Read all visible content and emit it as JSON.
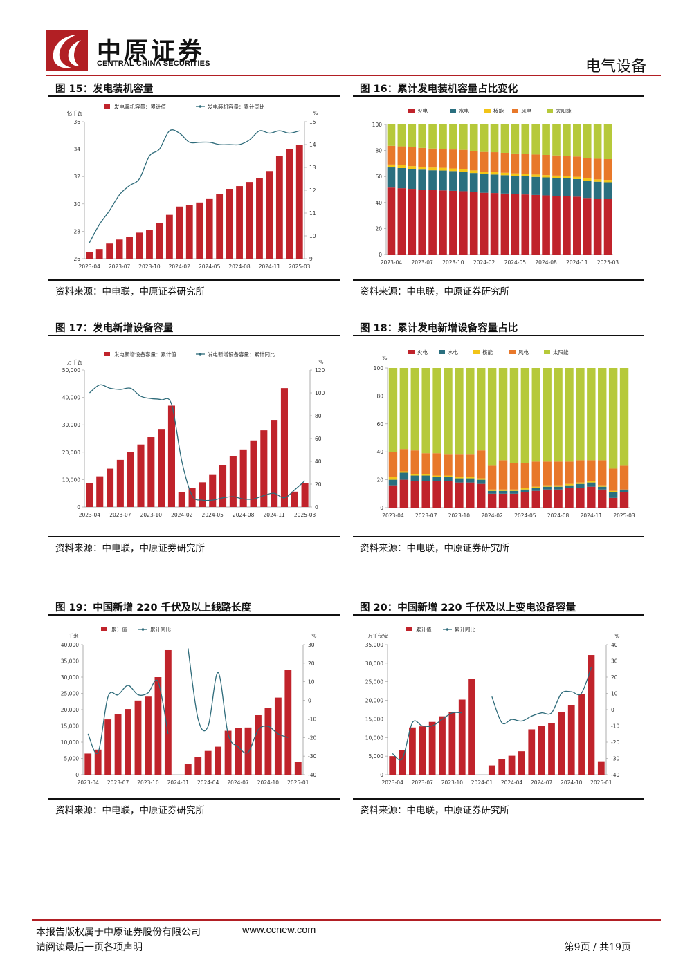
{
  "header": {
    "logo_cn": "中原证券",
    "logo_en": "CENTRAL CHINA SECURITIES",
    "section": "电气设备",
    "colors": {
      "brand_red": "#b21f24"
    }
  },
  "figures": [
    {
      "title": "图 15：发电装机容量",
      "source": "资料来源：中电联，中原证券研究所",
      "chart_data": {
        "type": "bar",
        "left_unit": "亿千瓦",
        "right_unit": "%",
        "categories": [
          "2023-04",
          "2023-05",
          "2023-06",
          "2023-07",
          "2023-08",
          "2023-09",
          "2023-10",
          "2023-11",
          "2023-12",
          "2024-02",
          "2024-03",
          "2024-04",
          "2024-05",
          "2024-06",
          "2024-07",
          "2024-08",
          "2024-09",
          "2024-10",
          "2024-11",
          "2024-12",
          "2025-01",
          "2025-03"
        ],
        "tick_labels": [
          "2023-04",
          "2023-07",
          "2023-10",
          "2024-02",
          "2024-05",
          "2024-08",
          "2024-11",
          "2025-03"
        ],
        "series": [
          {
            "name": "发电装机容量：累计值",
            "color": "#c0232b",
            "axis": "left",
            "values": [
              26.5,
              26.7,
              27.1,
              27.4,
              27.6,
              27.9,
              28.1,
              28.6,
              29.2,
              29.8,
              29.9,
              30.1,
              30.4,
              30.7,
              31.1,
              31.3,
              31.6,
              31.9,
              32.4,
              33.5,
              34.0,
              34.3
            ]
          },
          {
            "name": "发电装机容量：累计同比",
            "color": "#2e6b7a",
            "axis": "right",
            "values": [
              9.7,
              10.5,
              11.1,
              11.8,
              12.2,
              12.5,
              13.5,
              13.8,
              14.6,
              14.5,
              14.1,
              14.1,
              14.1,
              14.0,
              14.0,
              14.0,
              14.2,
              14.6,
              14.5,
              14.6,
              14.5,
              14.6
            ]
          }
        ],
        "ylim_left": [
          26,
          36
        ],
        "yticks_left": [
          26,
          28,
          30,
          32,
          34,
          36
        ],
        "ylim_right": [
          9,
          15
        ],
        "yticks_right": [
          9,
          10,
          11,
          12,
          13,
          14,
          15
        ]
      }
    },
    {
      "title": "图 16：累计发电装机容量占比变化",
      "source": "资料来源：中电联，中原证券研究所",
      "chart_data": {
        "type": "stacked_bar",
        "categories": [
          "2023-04",
          "2023-05",
          "2023-06",
          "2023-07",
          "2023-08",
          "2023-09",
          "2023-10",
          "2023-11",
          "2023-12",
          "2024-02",
          "2024-03",
          "2024-04",
          "2024-05",
          "2024-06",
          "2024-07",
          "2024-08",
          "2024-09",
          "2024-10",
          "2024-11",
          "2024-12",
          "2025-01",
          "2025-03"
        ],
        "tick_labels": [
          "2023-04",
          "2023-07",
          "2023-10",
          "2024-02",
          "2024-05",
          "2024-08",
          "2024-11",
          "2025-03"
        ],
        "ylim": [
          0,
          100
        ],
        "yticks": [
          0,
          20,
          40,
          60,
          80,
          100
        ],
        "series": [
          {
            "name": "火电",
            "color": "#c0232b",
            "values": [
              51.5,
              51.0,
              50.5,
              50.0,
              49.5,
              49.3,
              49.0,
              48.7,
              48.0,
              47.5,
              47.3,
              46.9,
              46.5,
              46.2,
              45.8,
              45.5,
              45.2,
              45.0,
              44.5,
              43.5,
              43.0,
              42.7
            ]
          },
          {
            "name": "水电",
            "color": "#2a6f7f",
            "values": [
              15.5,
              15.5,
              15.4,
              15.3,
              15.3,
              15.3,
              15.2,
              15.0,
              14.7,
              14.3,
              14.2,
              14.1,
              14.0,
              14.0,
              13.9,
              13.8,
              13.7,
              13.6,
              13.5,
              13.2,
              13.0,
              12.9
            ]
          },
          {
            "name": "核能",
            "color": "#f2c418",
            "values": [
              2.2,
              2.2,
              2.1,
              2.1,
              2.1,
              2.1,
              2.0,
              2.0,
              2.0,
              1.9,
              1.9,
              1.9,
              1.9,
              1.9,
              1.8,
              1.8,
              1.8,
              1.8,
              1.8,
              1.8,
              1.8,
              1.8
            ]
          },
          {
            "name": "风电",
            "color": "#e8782a",
            "values": [
              14.4,
              14.5,
              14.6,
              14.6,
              14.6,
              14.6,
              14.6,
              14.8,
              15.1,
              15.2,
              15.3,
              15.3,
              15.3,
              15.3,
              15.4,
              15.5,
              15.5,
              15.6,
              15.6,
              15.8,
              15.9,
              16.0
            ]
          },
          {
            "name": "太阳能",
            "color": "#b6c93a",
            "values": [
              16.4,
              16.8,
              17.4,
              18.0,
              18.5,
              18.7,
              19.2,
              19.5,
              20.2,
              21.1,
              21.3,
              21.8,
              22.3,
              22.6,
              23.1,
              23.4,
              23.8,
              24.0,
              24.6,
              25.7,
              26.3,
              26.6
            ]
          }
        ]
      }
    },
    {
      "title": "图 17：发电新增设备容量",
      "source": "资料来源：中电联，中原证券研究所",
      "chart_data": {
        "type": "bar",
        "left_unit": "万千瓦",
        "right_unit": "%",
        "categories": [
          "2023-04",
          "2023-05",
          "2023-06",
          "2023-07",
          "2023-08",
          "2023-09",
          "2023-10",
          "2023-11",
          "2023-12",
          "2024-02",
          "2024-03",
          "2024-04",
          "2024-05",
          "2024-06",
          "2024-07",
          "2024-08",
          "2024-09",
          "2024-10",
          "2024-11",
          "2024-12",
          "2025-01",
          "2025-03"
        ],
        "tick_labels": [
          "2023-04",
          "2023-07",
          "2023-10",
          "2024-02",
          "2024-05",
          "2024-08",
          "2024-11",
          "2025-03"
        ],
        "series": [
          {
            "name": "发电新增设备容量：累计值",
            "color": "#c0232b",
            "axis": "left",
            "values": [
              8600,
              11200,
              14000,
              17200,
              20000,
              22800,
              25500,
              28500,
              37000,
              5500,
              7000,
              9000,
              11700,
              15200,
              18600,
              21000,
              24300,
              28000,
              31800,
              43400,
              5600,
              8700
            ]
          },
          {
            "name": "发电新增设备容量：累计同比",
            "color": "#2e6b7a",
            "axis": "right",
            "values": [
              100,
              107,
              104,
              103,
              104,
              97,
              95,
              94,
              90,
              40,
              10,
              6,
              6,
              8,
              9,
              7,
              7,
              10,
              12,
              8,
              15,
              23
            ]
          }
        ],
        "ylim_left": [
          0,
          50000
        ],
        "yticks_left": [
          0,
          10000,
          20000,
          30000,
          40000,
          50000
        ],
        "yticks_left_labels": [
          "0",
          "10,000",
          "20,000",
          "30,000",
          "40,000",
          "50,000"
        ],
        "ylim_right": [
          0,
          120
        ],
        "yticks_right": [
          0,
          20,
          40,
          60,
          80,
          100,
          120
        ]
      }
    },
    {
      "title": "图 18：累计发电新增设备容量占比",
      "source": "资料来源：中电联，中原证券研究所",
      "chart_data": {
        "type": "stacked_bar",
        "y_unit": "%",
        "categories": [
          "2023-04",
          "2023-05",
          "2023-06",
          "2023-07",
          "2023-08",
          "2023-09",
          "2023-10",
          "2023-11",
          "2023-12",
          "2024-02",
          "2024-03",
          "2024-04",
          "2024-05",
          "2024-06",
          "2024-07",
          "2024-08",
          "2024-09",
          "2024-10",
          "2024-11",
          "2024-12",
          "2025-01",
          "2025-03"
        ],
        "tick_labels": [
          "2023-04",
          "2023-07",
          "2023-10",
          "2024-02",
          "2024-05",
          "2024-08",
          "2024-11",
          "2025-03"
        ],
        "ylim": [
          0,
          100
        ],
        "yticks": [
          0,
          20,
          40,
          60,
          80,
          100
        ],
        "series": [
          {
            "name": "火电",
            "color": "#c0232b",
            "values": [
              16,
              20,
              19,
              19,
              19,
              19,
              18,
              18,
              17,
              10,
              10,
              10,
              11,
              12,
              13,
              13,
              14,
              14,
              15,
              13,
              7,
              11
            ]
          },
          {
            "name": "水电",
            "color": "#2a6f7f",
            "values": [
              4,
              5,
              4,
              4,
              3,
              3,
              3,
              3,
              3,
              2,
              2,
              2,
              2,
              2,
              2,
              2,
              2,
              3,
              3,
              2,
              4,
              2
            ]
          },
          {
            "name": "核能",
            "color": "#f2c418",
            "values": [
              2,
              1,
              1,
              1,
              1,
              1,
              1,
              1,
              1,
              1,
              1,
              1,
              1,
              1,
              1,
              1,
              1,
              1,
              1,
              1,
              1,
              0
            ]
          },
          {
            "name": "风电",
            "color": "#e8782a",
            "values": [
              18,
              16,
              17,
              15,
              16,
              15,
              16,
              16,
              20,
              17,
              21,
              19,
              18,
              18,
              17,
              17,
              16,
              16,
              15,
              18,
              16,
              17
            ]
          },
          {
            "name": "太阳能",
            "color": "#b6c93a",
            "values": [
              60,
              58,
              59,
              61,
              61,
              62,
              62,
              62,
              59,
              70,
              66,
              68,
              68,
              67,
              67,
              67,
              67,
              66,
              66,
              66,
              72,
              70
            ]
          }
        ]
      }
    },
    {
      "title": "图 19：中国新增 220 千伏及以上线路长度",
      "source": "资料来源：中电联，中原证券研究所",
      "chart_data": {
        "type": "bar",
        "left_unit": "千米",
        "right_unit": "%",
        "categories": [
          "2023-04",
          "2023-05",
          "2023-06",
          "2023-07",
          "2023-08",
          "2023-09",
          "2023-10",
          "2023-11",
          "2023-12",
          "2024-01",
          "2024-02",
          "2024-03",
          "2024-04",
          "2024-05",
          "2024-06",
          "2024-07",
          "2024-08",
          "2024-09",
          "2024-10",
          "2024-11",
          "2024-12",
          "2025-01"
        ],
        "tick_labels": [
          "2023-04",
          "2023-07",
          "2023-10",
          "2024-01",
          "2024-04",
          "2024-07",
          "2024-10",
          "2025-01"
        ],
        "series": [
          {
            "name": "累计值",
            "color": "#c0232b",
            "axis": "left",
            "values": [
              6500,
              7700,
              17000,
              18600,
              20200,
              22800,
              24000,
              30000,
              38300,
              null,
              3400,
              5500,
              7300,
              8600,
              13500,
              14300,
              14500,
              18300,
              20600,
              23700,
              32200,
              3900
            ]
          },
          {
            "name": "累计同比",
            "color": "#2e6b7a",
            "axis": "right",
            "values": [
              -18,
              -28,
              2,
              3,
              8,
              3,
              4,
              10,
              -18,
              null,
              28,
              -10,
              -14,
              15,
              -18,
              -25,
              -28,
              -16,
              -14,
              -18,
              -20,
              null
            ]
          }
        ],
        "ylim_left": [
          0,
          40000
        ],
        "yticks_left": [
          0,
          5000,
          10000,
          15000,
          20000,
          25000,
          30000,
          35000,
          40000
        ],
        "yticks_left_labels": [
          "0",
          "5,000",
          "10,000",
          "15,000",
          "20,000",
          "25,000",
          "30,000",
          "35,000",
          "40,000"
        ],
        "ylim_right": [
          -40,
          30
        ],
        "yticks_right": [
          -40,
          -30,
          -20,
          -10,
          0,
          10,
          20,
          30
        ]
      }
    },
    {
      "title": "图 20：中国新增 220 千伏及以上变电设备容量",
      "source": "资料来源：中电联，中原证券研究所",
      "chart_data": {
        "type": "bar",
        "left_unit": "万千伏安",
        "right_unit": "%",
        "categories": [
          "2023-04",
          "2023-05",
          "2023-06",
          "2023-07",
          "2023-08",
          "2023-09",
          "2023-10",
          "2023-11",
          "2023-12",
          "2024-01",
          "2024-02",
          "2024-03",
          "2024-04",
          "2024-05",
          "2024-06",
          "2024-07",
          "2024-08",
          "2024-09",
          "2024-10",
          "2024-11",
          "2024-12",
          "2025-01"
        ],
        "tick_labels": [
          "2023-04",
          "2023-07",
          "2023-10",
          "2024-01",
          "2024-04",
          "2024-07",
          "2024-10",
          "2025-01"
        ],
        "series": [
          {
            "name": "累计值",
            "color": "#c0232b",
            "axis": "left",
            "values": [
              5000,
              6700,
              12700,
              13000,
              14200,
              15700,
              16900,
              20200,
              25700,
              null,
              2500,
              4100,
              5100,
              6300,
              12200,
              13200,
              13900,
              16900,
              18800,
              21700,
              32200,
              3600
            ]
          },
          {
            "name": "累计同比",
            "color": "#2e6b7a",
            "axis": "right",
            "values": [
              -27,
              -30,
              -8,
              -10,
              -10,
              -6,
              -2,
              -2,
              null,
              null,
              8,
              -8,
              -6,
              -7,
              -4,
              -2,
              -2,
              10,
              11,
              10,
              26,
              null
            ]
          }
        ],
        "ylim_left": [
          0,
          35000
        ],
        "yticks_left": [
          0,
          5000,
          10000,
          15000,
          20000,
          25000,
          30000,
          35000
        ],
        "yticks_left_labels": [
          "0",
          "5,000",
          "10,000",
          "15,000",
          "20,000",
          "25,000",
          "30,000",
          "35,000"
        ],
        "ylim_right": [
          -40,
          40
        ],
        "yticks_right": [
          -40,
          -30,
          -20,
          -10,
          0,
          10,
          20,
          30,
          40
        ]
      }
    }
  ],
  "footer": {
    "copyright": "本报告版权属于中原证券股份有限公司",
    "url": "www.ccnew.com",
    "disclaimer": "请阅读最后一页各项声明",
    "page": "第9页 / 共19页"
  }
}
